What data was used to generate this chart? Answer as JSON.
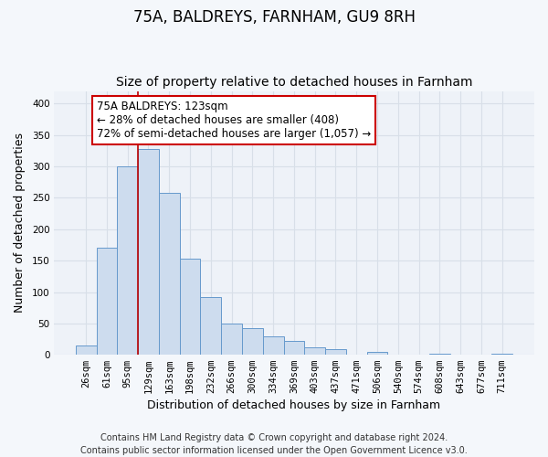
{
  "title": "75A, BALDREYS, FARNHAM, GU9 8RH",
  "subtitle": "Size of property relative to detached houses in Farnham",
  "xlabel": "Distribution of detached houses by size in Farnham",
  "ylabel": "Number of detached properties",
  "bar_labels": [
    "26sqm",
    "61sqm",
    "95sqm",
    "129sqm",
    "163sqm",
    "198sqm",
    "232sqm",
    "266sqm",
    "300sqm",
    "334sqm",
    "369sqm",
    "403sqm",
    "437sqm",
    "471sqm",
    "506sqm",
    "540sqm",
    "574sqm",
    "608sqm",
    "643sqm",
    "677sqm",
    "711sqm"
  ],
  "bar_values": [
    15,
    170,
    300,
    328,
    258,
    153,
    92,
    50,
    43,
    29,
    23,
    12,
    10,
    0,
    5,
    0,
    0,
    2,
    0,
    0,
    2
  ],
  "bar_color": "#cddcee",
  "bar_edge_color": "#6699cc",
  "vline_x_idx": 3,
  "vline_color": "#bb0000",
  "annotation_line1": "75A BALDREYS: 123sqm",
  "annotation_line2": "← 28% of detached houses are smaller (408)",
  "annotation_line3": "72% of semi-detached houses are larger (1,057) →",
  "annotation_box_edge": "#cc0000",
  "annotation_box_face": "#ffffff",
  "ylim": [
    0,
    420
  ],
  "yticks": [
    0,
    50,
    100,
    150,
    200,
    250,
    300,
    350,
    400
  ],
  "footer_line1": "Contains HM Land Registry data © Crown copyright and database right 2024.",
  "footer_line2": "Contains public sector information licensed under the Open Government Licence v3.0.",
  "bg_color": "#f4f7fb",
  "plot_bg_color": "#eef2f8",
  "grid_color": "#d8dfe8",
  "title_fontsize": 12,
  "subtitle_fontsize": 10,
  "axis_label_fontsize": 9,
  "tick_fontsize": 7.5,
  "annotation_fontsize": 8.5,
  "footer_fontsize": 7
}
